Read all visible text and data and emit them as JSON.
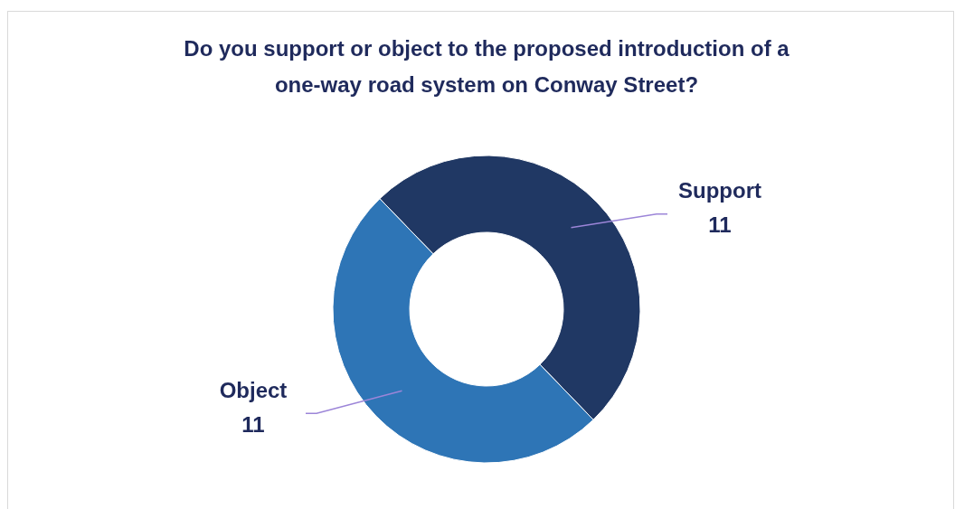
{
  "chart_data": {
    "type": "donut",
    "title": "Do you support or object to the proposed introduction of a one-way road system on Conway Street?",
    "categories": [
      "Support",
      "Object"
    ],
    "values": [
      11,
      11
    ],
    "colors": [
      "#203864",
      "#2e75b6"
    ],
    "data_labels": true,
    "legend": false
  }
}
